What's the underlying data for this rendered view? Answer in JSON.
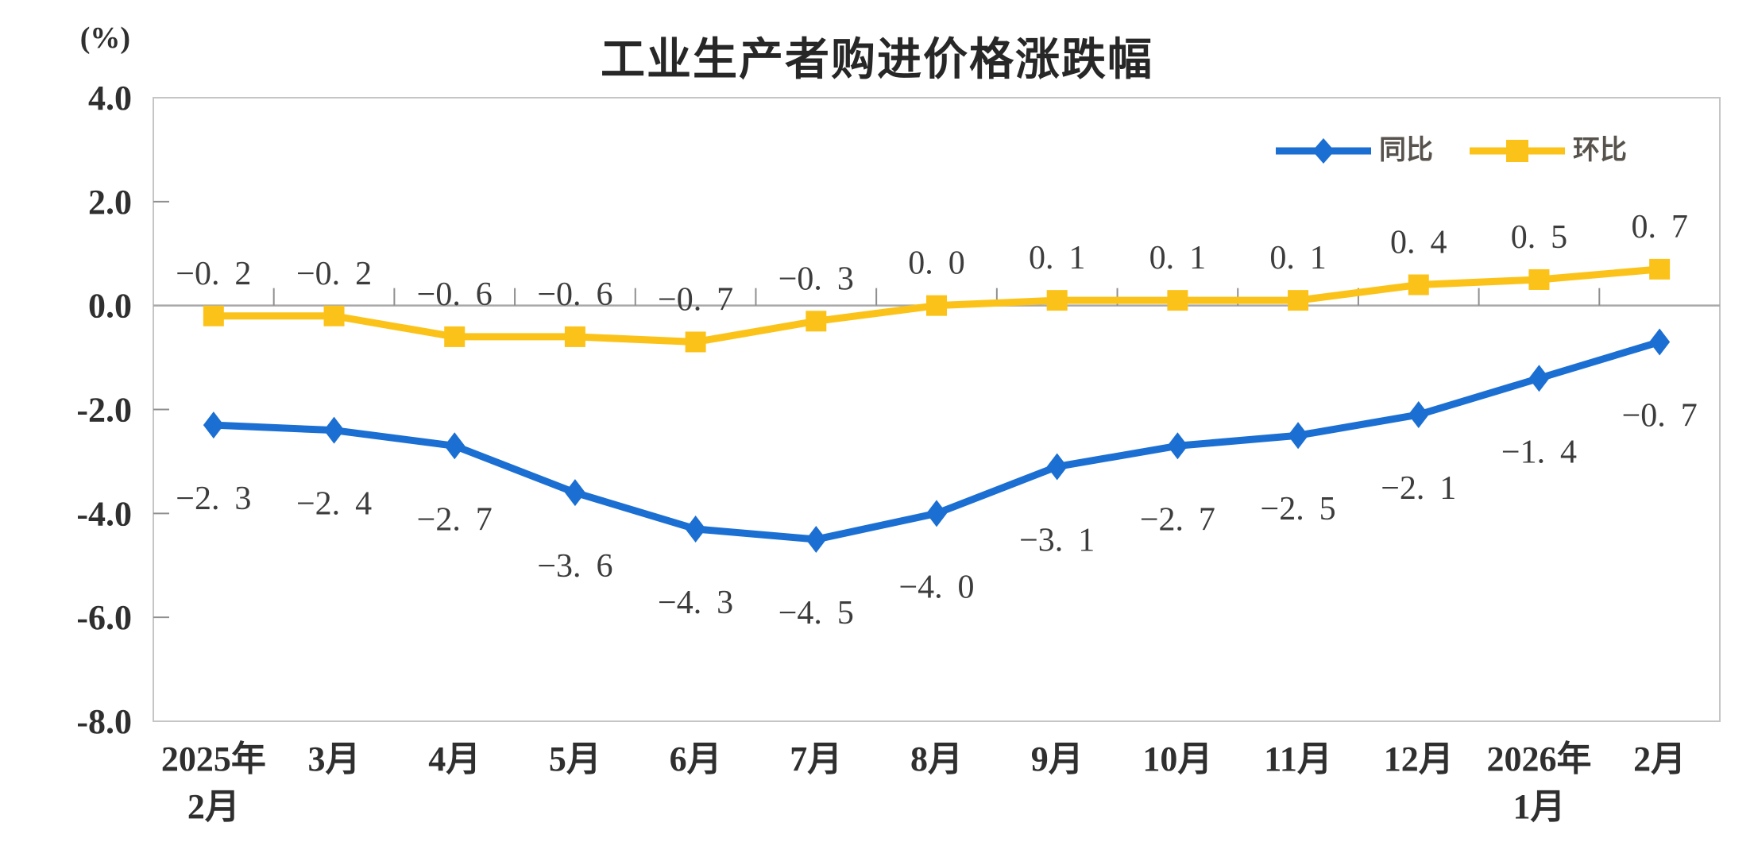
{
  "figure": {
    "title": "工业生产者购进价格涨跌幅",
    "unit_label": "(%)"
  },
  "chart_data": {
    "type": "line",
    "title": "工业生产者购进价格涨跌幅",
    "xlabel": "",
    "ylabel": "(%)",
    "ylim": [
      -8.0,
      4.0
    ],
    "ytick_interval": 2.0,
    "y_tick_labels": [
      "4.0",
      "2.0",
      "0.0",
      "-2.0",
      "-4.0",
      "-6.0",
      "-8.0"
    ],
    "grid": false,
    "zero_line": true,
    "legend_position": "top-right",
    "categories": [
      "2025年\n2月",
      "3月",
      "4月",
      "5月",
      "6月",
      "7月",
      "8月",
      "9月",
      "10月",
      "11月",
      "12月",
      "2026年\n1月",
      "2月"
    ],
    "series": [
      {
        "name": "同比",
        "marker": "diamond",
        "color": "#1c6fd2",
        "data_label_position": "below",
        "values": [
          -2.3,
          -2.4,
          -2.7,
          -3.6,
          -4.3,
          -4.5,
          -4.0,
          -3.1,
          -2.7,
          -2.5,
          -2.1,
          -1.4,
          -0.7
        ]
      },
      {
        "name": "环比",
        "marker": "square",
        "color": "#fbc319",
        "data_label_position": "above",
        "values": [
          -0.2,
          -0.2,
          -0.6,
          -0.6,
          -0.7,
          -0.3,
          0.0,
          0.1,
          0.1,
          0.1,
          0.4,
          0.5,
          0.7
        ]
      }
    ],
    "axis_colors": {
      "border": "#c5c5c5",
      "zero_line": "#a8a8a8",
      "tick": "#8f8f8f",
      "axis_text": "#2f2f2f",
      "data_label_text": "#3c3c3c"
    }
  }
}
